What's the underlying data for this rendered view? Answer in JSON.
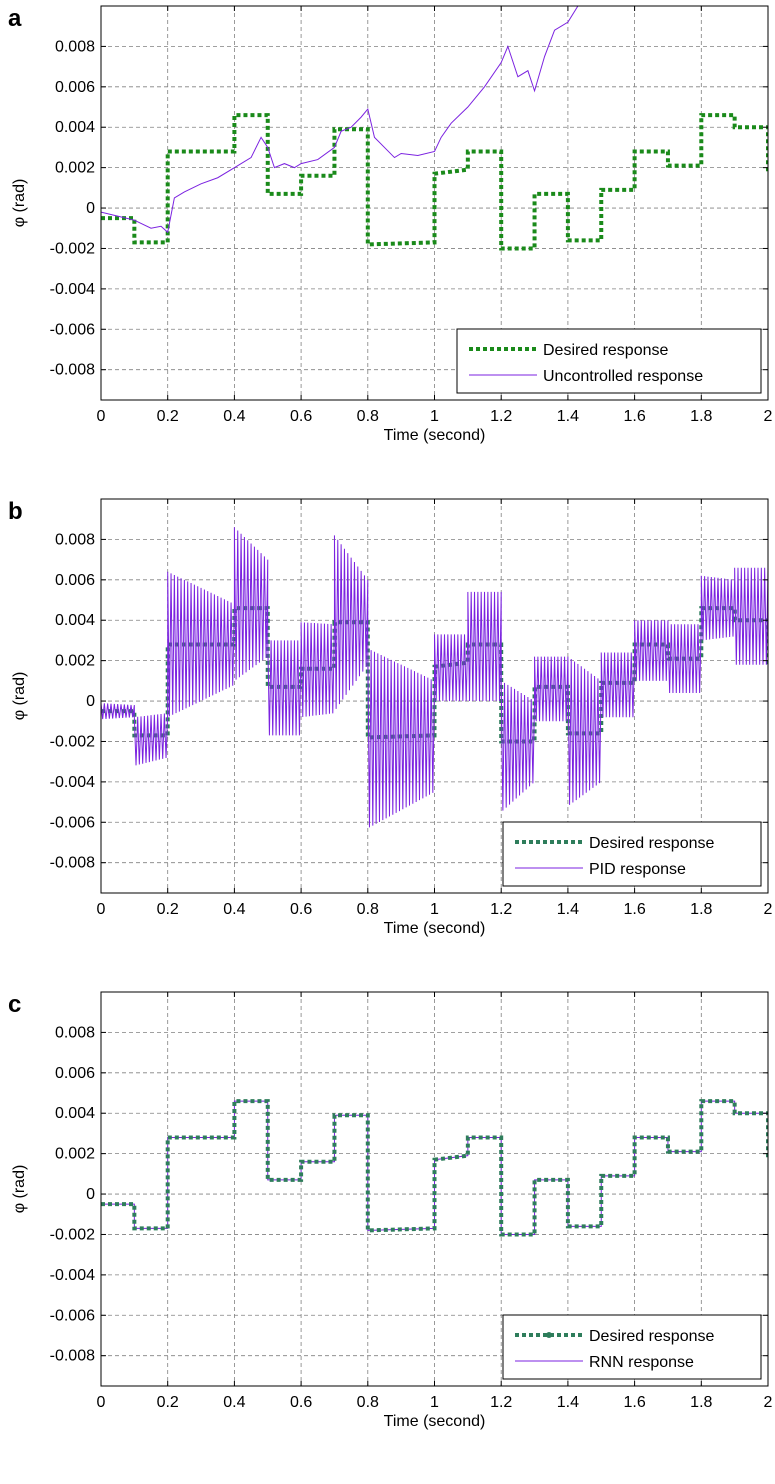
{
  "colors": {
    "desired_a": "#1a8a1a",
    "desired_bc": "#2e7d5b",
    "response": "#7b22e0",
    "grid": "#808080",
    "axis": "#000000"
  },
  "chart_data": [
    {
      "type": "line",
      "panel_label": "a",
      "xlabel": "Time (second)",
      "ylabel": "φ (rad)",
      "xlim": [
        0,
        2
      ],
      "ylim": [
        -0.0095,
        0.01
      ],
      "xticks": [
        "0",
        "0.2",
        "0.4",
        "0.6",
        "0.8",
        "1",
        "1.2",
        "1.4",
        "1.6",
        "1.8",
        "2"
      ],
      "yticks": [
        "0.008",
        "0.006",
        "0.004",
        "0.002",
        "0",
        "-0.002",
        "-0.004",
        "-0.006",
        "-0.008"
      ],
      "grid": true,
      "legend_position": "bottom-right",
      "series": [
        {
          "name": "Desired response",
          "style": "dotted",
          "x": [
            0,
            0.1,
            0.1,
            0.2,
            0.2,
            0.4,
            0.4,
            0.5,
            0.5,
            0.6,
            0.6,
            0.7,
            0.7,
            0.8,
            0.8,
            1.0,
            1.0,
            1.1,
            1.1,
            1.2,
            1.2,
            1.3,
            1.3,
            1.4,
            1.4,
            1.5,
            1.5,
            1.6,
            1.6,
            1.7,
            1.7,
            1.8,
            1.8,
            1.9,
            1.9,
            2.0,
            2.0
          ],
          "y": [
            -0.0005,
            -0.0005,
            -0.0017,
            -0.0017,
            0.0028,
            0.0028,
            0.0046,
            0.0046,
            0.0007,
            0.0007,
            0.0016,
            0.0016,
            0.0039,
            0.0039,
            -0.0018,
            -0.0017,
            0.0017,
            0.0019,
            0.0028,
            0.0028,
            -0.002,
            -0.002,
            0.0007,
            0.0007,
            -0.0016,
            -0.0016,
            0.0009,
            0.0009,
            0.0028,
            0.0028,
            0.0021,
            0.0021,
            0.0046,
            0.0046,
            0.004,
            0.004,
            0.0017
          ]
        },
        {
          "name": "Uncontrolled response",
          "style": "solid",
          "x": [
            0,
            0.05,
            0.1,
            0.15,
            0.18,
            0.2,
            0.22,
            0.25,
            0.3,
            0.35,
            0.4,
            0.45,
            0.48,
            0.5,
            0.52,
            0.55,
            0.58,
            0.6,
            0.65,
            0.7,
            0.72,
            0.75,
            0.78,
            0.8,
            0.82,
            0.85,
            0.88,
            0.9,
            0.95,
            1.0,
            1.02,
            1.05,
            1.1,
            1.15,
            1.2,
            1.22,
            1.25,
            1.28,
            1.3,
            1.33,
            1.36,
            1.4,
            1.43
          ],
          "y": [
            -0.0002,
            -0.0004,
            -0.0006,
            -0.001,
            -0.0009,
            -0.0012,
            0.0005,
            0.0008,
            0.0012,
            0.0015,
            0.002,
            0.0025,
            0.0035,
            0.003,
            0.002,
            0.0022,
            0.002,
            0.0022,
            0.0024,
            0.003,
            0.0038,
            0.004,
            0.0045,
            0.0049,
            0.0035,
            0.003,
            0.0025,
            0.0027,
            0.0026,
            0.0028,
            0.0035,
            0.0042,
            0.005,
            0.006,
            0.0072,
            0.008,
            0.0065,
            0.0068,
            0.0058,
            0.0075,
            0.0088,
            0.0092,
            0.01
          ]
        }
      ]
    },
    {
      "type": "line",
      "panel_label": "b",
      "xlabel": "Time (second)",
      "ylabel": "φ (rad)",
      "xlim": [
        0,
        2
      ],
      "ylim": [
        -0.0095,
        0.01
      ],
      "xticks": [
        "0",
        "0.2",
        "0.4",
        "0.6",
        "0.8",
        "1",
        "1.2",
        "1.4",
        "1.6",
        "1.8",
        "2"
      ],
      "yticks": [
        "0.008",
        "0.006",
        "0.004",
        "0.002",
        "0",
        "-0.002",
        "-0.004",
        "-0.006",
        "-0.008"
      ],
      "grid": true,
      "legend_position": "bottom-right",
      "series": [
        {
          "name": "Desired response",
          "style": "dotted",
          "x": [
            0,
            0.1,
            0.1,
            0.2,
            0.2,
            0.4,
            0.4,
            0.5,
            0.5,
            0.6,
            0.6,
            0.7,
            0.7,
            0.8,
            0.8,
            1.0,
            1.0,
            1.1,
            1.1,
            1.2,
            1.2,
            1.3,
            1.3,
            1.4,
            1.4,
            1.5,
            1.5,
            1.6,
            1.6,
            1.7,
            1.7,
            1.8,
            1.8,
            1.9,
            1.9,
            2.0,
            2.0
          ],
          "y": [
            -0.0005,
            -0.0005,
            -0.0017,
            -0.0017,
            0.0028,
            0.0028,
            0.0046,
            0.0046,
            0.0007,
            0.0007,
            0.0016,
            0.0016,
            0.0039,
            0.0039,
            -0.0018,
            -0.0017,
            0.0017,
            0.0019,
            0.0028,
            0.0028,
            -0.002,
            -0.002,
            0.0007,
            0.0007,
            -0.0016,
            -0.0016,
            0.0009,
            0.0009,
            0.0028,
            0.0028,
            0.0021,
            0.0021,
            0.0046,
            0.0046,
            0.004,
            0.004,
            0.0017
          ]
        },
        {
          "name": "PID response",
          "style": "oscillating",
          "envelope": [
            {
              "x0": 0.0,
              "x1": 0.1,
              "upper": [
                -0.0001,
                -0.0002
              ],
              "lower": [
                -0.0009,
                -0.0008
              ]
            },
            {
              "x0": 0.1,
              "x1": 0.2,
              "upper": [
                -0.0008,
                -0.0006
              ],
              "lower": [
                -0.0032,
                -0.0028
              ]
            },
            {
              "x0": 0.2,
              "x1": 0.4,
              "upper": [
                0.0064,
                0.0048
              ],
              "lower": [
                -0.0008,
                0.0008
              ]
            },
            {
              "x0": 0.4,
              "x1": 0.5,
              "upper": [
                0.0086,
                0.007
              ],
              "lower": [
                0.001,
                0.0022
              ]
            },
            {
              "x0": 0.5,
              "x1": 0.6,
              "upper": [
                0.003,
                0.003
              ],
              "lower": [
                -0.0017,
                -0.0017
              ]
            },
            {
              "x0": 0.6,
              "x1": 0.7,
              "upper": [
                0.0039,
                0.0038
              ],
              "lower": [
                -0.0008,
                -0.0006
              ]
            },
            {
              "x0": 0.7,
              "x1": 0.8,
              "upper": [
                0.0082,
                0.006
              ],
              "lower": [
                -0.0005,
                0.0018
              ]
            },
            {
              "x0": 0.8,
              "x1": 1.0,
              "upper": [
                0.0026,
                0.001
              ],
              "lower": [
                -0.0063,
                -0.0045
              ]
            },
            {
              "x0": 1.0,
              "x1": 1.1,
              "upper": [
                0.0033,
                0.0033
              ],
              "lower": [
                0.0,
                0.0
              ]
            },
            {
              "x0": 1.1,
              "x1": 1.2,
              "upper": [
                0.0054,
                0.0054
              ],
              "lower": [
                0.0,
                0.0
              ]
            },
            {
              "x0": 1.2,
              "x1": 1.3,
              "upper": [
                0.001,
                0.0
              ],
              "lower": [
                -0.0055,
                -0.004
              ]
            },
            {
              "x0": 1.3,
              "x1": 1.4,
              "upper": [
                0.0022,
                0.0022
              ],
              "lower": [
                -0.001,
                -0.001
              ]
            },
            {
              "x0": 1.4,
              "x1": 1.5,
              "upper": [
                0.0022,
                0.001
              ],
              "lower": [
                -0.0052,
                -0.004
              ]
            },
            {
              "x0": 1.5,
              "x1": 1.6,
              "upper": [
                0.0024,
                0.0024
              ],
              "lower": [
                -0.0008,
                -0.0008
              ]
            },
            {
              "x0": 1.6,
              "x1": 1.7,
              "upper": [
                0.004,
                0.004
              ],
              "lower": [
                0.001,
                0.001
              ]
            },
            {
              "x0": 1.7,
              "x1": 1.8,
              "upper": [
                0.0038,
                0.0038
              ],
              "lower": [
                0.0004,
                0.0004
              ]
            },
            {
              "x0": 1.8,
              "x1": 1.9,
              "upper": [
                0.0062,
                0.006
              ],
              "lower": [
                0.003,
                0.0032
              ]
            },
            {
              "x0": 1.9,
              "x1": 2.0,
              "upper": [
                0.0066,
                0.0066
              ],
              "lower": [
                0.0018,
                0.0018
              ]
            }
          ]
        }
      ]
    },
    {
      "type": "line",
      "panel_label": "c",
      "xlabel": "Time (second)",
      "ylabel": "φ (rad)",
      "xlim": [
        0,
        2
      ],
      "ylim": [
        -0.0095,
        0.01
      ],
      "xticks": [
        "0",
        "0.2",
        "0.4",
        "0.6",
        "0.8",
        "1",
        "1.2",
        "1.4",
        "1.6",
        "1.8",
        "2"
      ],
      "yticks": [
        "0.008",
        "0.006",
        "0.004",
        "0.002",
        "0",
        "-0.002",
        "-0.004",
        "-0.006",
        "-0.008"
      ],
      "grid": true,
      "legend_position": "bottom-right",
      "series": [
        {
          "name": "RNN response",
          "style": "solid",
          "x": [
            0,
            0.1,
            0.1,
            0.2,
            0.2,
            0.4,
            0.4,
            0.5,
            0.5,
            0.6,
            0.6,
            0.7,
            0.7,
            0.8,
            0.8,
            1.0,
            1.0,
            1.1,
            1.1,
            1.2,
            1.2,
            1.3,
            1.3,
            1.4,
            1.4,
            1.5,
            1.5,
            1.6,
            1.6,
            1.7,
            1.7,
            1.8,
            1.8,
            1.9,
            1.9,
            2.0,
            2.0
          ],
          "y": [
            -0.0005,
            -0.0005,
            -0.0017,
            -0.0017,
            0.0028,
            0.0028,
            0.0046,
            0.0046,
            0.0007,
            0.0007,
            0.0016,
            0.0016,
            0.0039,
            0.0039,
            -0.0018,
            -0.0017,
            0.0017,
            0.0019,
            0.0028,
            0.0028,
            -0.002,
            -0.002,
            0.0007,
            0.0007,
            -0.0016,
            -0.0016,
            0.0009,
            0.0009,
            0.0028,
            0.0028,
            0.0021,
            0.0021,
            0.0046,
            0.0046,
            0.004,
            0.004,
            0.0017
          ]
        },
        {
          "name": "Desired response",
          "style": "dotted",
          "x": [
            0,
            0.1,
            0.1,
            0.2,
            0.2,
            0.4,
            0.4,
            0.5,
            0.5,
            0.6,
            0.6,
            0.7,
            0.7,
            0.8,
            0.8,
            1.0,
            1.0,
            1.1,
            1.1,
            1.2,
            1.2,
            1.3,
            1.3,
            1.4,
            1.4,
            1.5,
            1.5,
            1.6,
            1.6,
            1.7,
            1.7,
            1.8,
            1.8,
            1.9,
            1.9,
            2.0,
            2.0
          ],
          "y": [
            -0.0005,
            -0.0005,
            -0.0017,
            -0.0017,
            0.0028,
            0.0028,
            0.0046,
            0.0046,
            0.0007,
            0.0007,
            0.0016,
            0.0016,
            0.0039,
            0.0039,
            -0.0018,
            -0.0017,
            0.0017,
            0.0019,
            0.0028,
            0.0028,
            -0.002,
            -0.002,
            0.0007,
            0.0007,
            -0.0016,
            -0.0016,
            0.0009,
            0.0009,
            0.0028,
            0.0028,
            0.0021,
            0.0021,
            0.0046,
            0.0046,
            0.004,
            0.004,
            0.0017
          ]
        }
      ]
    }
  ]
}
